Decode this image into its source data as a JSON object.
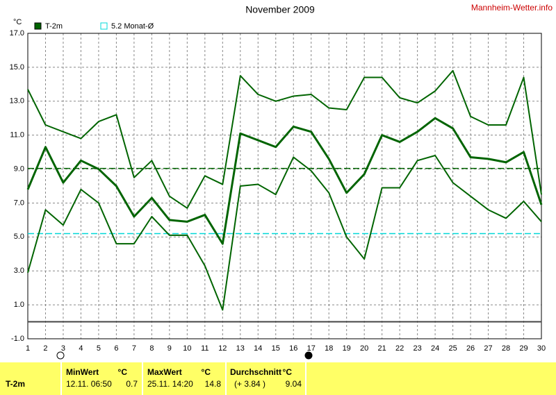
{
  "chart_data": {
    "type": "line",
    "title": "November 2009",
    "source": "Mannheim-Wetter.info",
    "y_unit": "°C",
    "x": [
      1,
      2,
      3,
      4,
      5,
      6,
      7,
      8,
      9,
      10,
      11,
      12,
      13,
      14,
      15,
      16,
      17,
      18,
      19,
      20,
      21,
      22,
      23,
      24,
      25,
      26,
      27,
      28,
      29,
      30
    ],
    "xlim": [
      1,
      30
    ],
    "xticks": [
      1,
      2,
      3,
      4,
      5,
      6,
      7,
      8,
      9,
      10,
      11,
      12,
      13,
      14,
      15,
      16,
      17,
      18,
      19,
      20,
      21,
      22,
      23,
      24,
      25,
      26,
      27,
      28,
      29,
      30
    ],
    "ylim": [
      -1,
      17
    ],
    "yticks": [
      {
        "value": 17,
        "label": "17.0"
      },
      {
        "value": 15,
        "label": "15.0"
      },
      {
        "value": 13,
        "label": "13.0"
      },
      {
        "value": 11,
        "label": "11.0"
      },
      {
        "value": 9,
        "label": "9.0"
      },
      {
        "value": 7,
        "label": "7.0"
      },
      {
        "value": 5,
        "label": "5.0"
      },
      {
        "value": 3,
        "label": "3.0"
      },
      {
        "value": 1,
        "label": "1.0"
      },
      {
        "value": -1,
        "label": "-1.0"
      }
    ],
    "grid": true,
    "zero_line": true,
    "series": [
      {
        "name": "T-2m",
        "color": "#006400",
        "width": 3,
        "values": [
          7.8,
          10.3,
          8.2,
          9.5,
          9.0,
          8.0,
          6.2,
          7.3,
          6.0,
          5.9,
          6.3,
          4.6,
          11.1,
          10.7,
          10.3,
          11.5,
          11.2,
          9.6,
          7.6,
          8.7,
          11.0,
          10.6,
          11.2,
          12.0,
          11.4,
          9.7,
          9.6,
          9.4,
          10.0,
          6.9
        ]
      },
      {
        "color": "#006400",
        "width": 2,
        "values": [
          13.7,
          11.6,
          11.2,
          10.8,
          11.8,
          12.2,
          8.5,
          9.5,
          7.4,
          6.7,
          8.6,
          8.1,
          14.5,
          13.4,
          13.0,
          13.3,
          13.4,
          12.6,
          12.5,
          14.4,
          14.4,
          13.2,
          12.9,
          13.6,
          14.8,
          12.1,
          11.6,
          11.6,
          14.4,
          7.5
        ]
      },
      {
        "color": "#006400",
        "width": 2,
        "values": [
          2.9,
          6.6,
          5.7,
          7.8,
          7.0,
          4.6,
          4.6,
          6.2,
          5.1,
          5.1,
          3.3,
          0.7,
          8.0,
          8.1,
          7.5,
          9.7,
          8.9,
          7.6,
          5.0,
          3.7,
          7.9,
          7.9,
          9.5,
          9.8,
          8.2,
          7.4,
          6.6,
          6.1,
          7.1,
          5.9
        ]
      }
    ],
    "reference_lines": [
      {
        "value": 9.04,
        "color": "#006400"
      },
      {
        "value": 5.2,
        "color": "#00d8d8",
        "label": "5.2 Monat-Ø"
      }
    ]
  },
  "table": {
    "header": [
      "MinWert",
      "°C",
      "MaxWert",
      "°C",
      "Durchschnitt",
      "°C"
    ],
    "rows": [
      [
        "T-2m",
        "12.11.  06:50",
        "0.7",
        "25.11.  14:20",
        "14.8",
        "(+ 3.84 )",
        "9.04"
      ]
    ]
  }
}
